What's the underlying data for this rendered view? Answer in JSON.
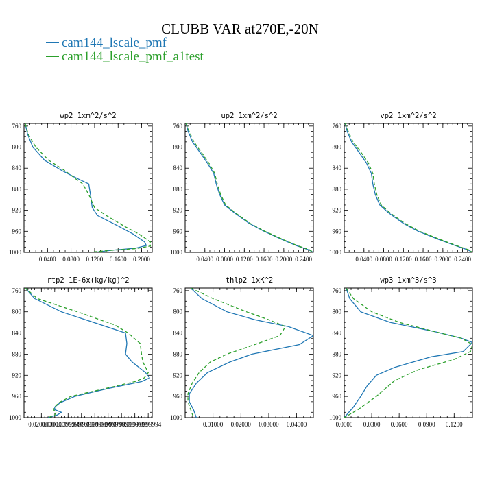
{
  "title": "CLUBB VAR at270E,-20N",
  "colors": {
    "series1": "#1f77b4",
    "series2": "#2ca02c"
  },
  "legend": [
    {
      "label": "cam144_lscale_pmf",
      "color": "#1f77b4",
      "style": "solid"
    },
    {
      "label": "cam144_lscale_pmf_a1test",
      "color": "#2ca02c",
      "style": "dashed"
    }
  ],
  "chart_data": [
    {
      "type": "line",
      "title": "wp2   1xm^2/s^2",
      "y_ticks": [
        "760",
        "800",
        "840",
        "880",
        "920",
        "960",
        "1000"
      ],
      "x_ticks": [
        {
          "value": 0.04,
          "label": "0.0400"
        },
        {
          "value": 0.08,
          "label": "0.0800"
        },
        {
          "value": 0.12,
          "label": "0.1200"
        },
        {
          "value": 0.16,
          "label": "0.1600"
        },
        {
          "value": 0.2,
          "label": "0.2000"
        }
      ],
      "xlim": [
        0.0,
        0.218
      ],
      "ylim": [
        755,
        1000
      ],
      "y_inverted": true,
      "series": [
        {
          "values": [
            [
              0.002,
              755
            ],
            [
              0.006,
              775
            ],
            [
              0.015,
              800
            ],
            [
              0.035,
              825
            ],
            [
              0.065,
              845
            ],
            [
              0.095,
              862
            ],
            [
              0.11,
              870
            ],
            [
              0.113,
              890
            ],
            [
              0.116,
              915
            ],
            [
              0.125,
              930
            ],
            [
              0.16,
              950
            ],
            [
              0.185,
              965
            ],
            [
              0.205,
              980
            ],
            [
              0.208,
              987
            ],
            [
              0.19,
              992
            ],
            [
              0.15,
              996
            ],
            [
              0.12,
              1000
            ]
          ]
        },
        {
          "values": [
            [
              0.002,
              755
            ],
            [
              0.007,
              775
            ],
            [
              0.02,
              800
            ],
            [
              0.042,
              825
            ],
            [
              0.07,
              845
            ],
            [
              0.09,
              862
            ],
            [
              0.1,
              870
            ],
            [
              0.11,
              890
            ],
            [
              0.12,
              915
            ],
            [
              0.14,
              930
            ],
            [
              0.17,
              950
            ],
            [
              0.195,
              965
            ],
            [
              0.215,
              980
            ],
            [
              0.215,
              988
            ],
            [
              0.19,
              993
            ],
            [
              0.15,
              996
            ],
            [
              0.11,
              1000
            ]
          ]
        }
      ]
    },
    {
      "type": "line",
      "title": "up2   1xm^2/s^2",
      "y_ticks": [
        "760",
        "800",
        "840",
        "880",
        "920",
        "960",
        "1000"
      ],
      "x_ticks": [
        {
          "value": 0.04,
          "label": "0.0400"
        },
        {
          "value": 0.08,
          "label": "0.0800"
        },
        {
          "value": 0.12,
          "label": "0.1200"
        },
        {
          "value": 0.16,
          "label": "0.1600"
        },
        {
          "value": 0.2,
          "label": "0.2000"
        },
        {
          "value": 0.24,
          "label": "0.2400"
        }
      ],
      "xlim": [
        0.0,
        0.26
      ],
      "ylim": [
        755,
        1000
      ],
      "y_inverted": true,
      "series": [
        {
          "values": [
            [
              0.002,
              755
            ],
            [
              0.006,
              770
            ],
            [
              0.015,
              790
            ],
            [
              0.03,
              810
            ],
            [
              0.045,
              830
            ],
            [
              0.058,
              850
            ],
            [
              0.063,
              870
            ],
            [
              0.07,
              890
            ],
            [
              0.08,
              910
            ],
            [
              0.1,
              925
            ],
            [
              0.13,
              945
            ],
            [
              0.16,
              960
            ],
            [
              0.195,
              975
            ],
            [
              0.225,
              987
            ],
            [
              0.25,
              995
            ],
            [
              0.26,
              1000
            ]
          ]
        },
        {
          "values": [
            [
              0.002,
              755
            ],
            [
              0.008,
              770
            ],
            [
              0.018,
              790
            ],
            [
              0.033,
              810
            ],
            [
              0.048,
              830
            ],
            [
              0.06,
              850
            ],
            [
              0.065,
              870
            ],
            [
              0.072,
              890
            ],
            [
              0.082,
              910
            ],
            [
              0.102,
              925
            ],
            [
              0.132,
              945
            ],
            [
              0.162,
              960
            ],
            [
              0.197,
              975
            ],
            [
              0.227,
              987
            ],
            [
              0.252,
              995
            ],
            [
              0.26,
              1000
            ]
          ]
        }
      ]
    },
    {
      "type": "line",
      "title": "vp2   1xm^2/s^2",
      "y_ticks": [
        "760",
        "800",
        "840",
        "880",
        "920",
        "960",
        "1000"
      ],
      "x_ticks": [
        {
          "value": 0.04,
          "label": "0.0400"
        },
        {
          "value": 0.08,
          "label": "0.0800"
        },
        {
          "value": 0.12,
          "label": "0.1200"
        },
        {
          "value": 0.16,
          "label": "0.1600"
        },
        {
          "value": 0.2,
          "label": "0.2000"
        },
        {
          "value": 0.24,
          "label": "0.2400"
        }
      ],
      "xlim": [
        0.0,
        0.26
      ],
      "ylim": [
        755,
        1000
      ],
      "y_inverted": true,
      "series": [
        {
          "values": [
            [
              0.002,
              755
            ],
            [
              0.006,
              770
            ],
            [
              0.015,
              790
            ],
            [
              0.03,
              810
            ],
            [
              0.045,
              830
            ],
            [
              0.055,
              850
            ],
            [
              0.058,
              870
            ],
            [
              0.063,
              890
            ],
            [
              0.072,
              910
            ],
            [
              0.09,
              925
            ],
            [
              0.12,
              945
            ],
            [
              0.15,
              960
            ],
            [
              0.19,
              975
            ],
            [
              0.225,
              987
            ],
            [
              0.25,
              995
            ],
            [
              0.26,
              1000
            ]
          ]
        },
        {
          "values": [
            [
              0.002,
              755
            ],
            [
              0.008,
              770
            ],
            [
              0.018,
              790
            ],
            [
              0.034,
              810
            ],
            [
              0.049,
              830
            ],
            [
              0.058,
              850
            ],
            [
              0.061,
              870
            ],
            [
              0.066,
              890
            ],
            [
              0.075,
              910
            ],
            [
              0.093,
              925
            ],
            [
              0.123,
              945
            ],
            [
              0.153,
              960
            ],
            [
              0.193,
              975
            ],
            [
              0.227,
              987
            ],
            [
              0.252,
              995
            ],
            [
              0.26,
              1000
            ]
          ]
        }
      ]
    },
    {
      "type": "line",
      "title": "rtp2   1E-6x(kg/kg)^2",
      "y_ticks": [
        "760",
        "800",
        "840",
        "880",
        "920",
        "960",
        "1000"
      ],
      "x_ticks": [
        {
          "value": 0.02,
          "label": "0.0200000"
        },
        {
          "value": 0.03,
          "label": "0.0300000"
        },
        {
          "value": 0.04,
          "label": "0.0399999"
        },
        {
          "value": 0.05,
          "label": "0.0499999"
        },
        {
          "value": 0.06,
          "label": "0.0599999"
        },
        {
          "value": 0.07,
          "label": "0.0699999"
        },
        {
          "value": 0.08,
          "label": "0.0799999"
        },
        {
          "value": 0.09,
          "label": "0.0899999"
        },
        {
          "value": 0.1,
          "label": "0.0999994"
        }
      ],
      "xlim": [
        0.007,
        0.103
      ],
      "ylim": [
        755,
        1000
      ],
      "y_inverted": true,
      "series": [
        {
          "values": [
            [
              0.008,
              755
            ],
            [
              0.015,
              775
            ],
            [
              0.035,
              800
            ],
            [
              0.065,
              825
            ],
            [
              0.083,
              840
            ],
            [
              0.084,
              860
            ],
            [
              0.083,
              880
            ],
            [
              0.088,
              895
            ],
            [
              0.098,
              915
            ],
            [
              0.101,
              925
            ],
            [
              0.095,
              932
            ],
            [
              0.07,
              945
            ],
            [
              0.045,
              960
            ],
            [
              0.034,
              972
            ],
            [
              0.03,
              980
            ],
            [
              0.03,
              985
            ],
            [
              0.035,
              990
            ],
            [
              0.032,
              995
            ],
            [
              0.025,
              1000
            ]
          ]
        },
        {
          "values": [
            [
              0.008,
              755
            ],
            [
              0.017,
              775
            ],
            [
              0.047,
              800
            ],
            [
              0.075,
              825
            ],
            [
              0.085,
              840
            ],
            [
              0.094,
              860
            ],
            [
              0.095,
              880
            ],
            [
              0.096,
              895
            ],
            [
              0.1,
              915
            ],
            [
              0.097,
              925
            ],
            [
              0.09,
              932
            ],
            [
              0.068,
              945
            ],
            [
              0.042,
              960
            ],
            [
              0.033,
              972
            ],
            [
              0.03,
              980
            ],
            [
              0.029,
              985
            ],
            [
              0.031,
              990
            ],
            [
              0.03,
              995
            ],
            [
              0.025,
              1000
            ]
          ]
        }
      ]
    },
    {
      "type": "line",
      "title": "thlp2   1xK^2",
      "y_ticks": [
        "760",
        "800",
        "840",
        "880",
        "920",
        "960",
        "1000"
      ],
      "x_ticks": [
        {
          "value": 0.01,
          "label": "0.01000"
        },
        {
          "value": 0.02,
          "label": "0.02000"
        },
        {
          "value": 0.03,
          "label": "0.03000"
        },
        {
          "value": 0.04,
          "label": "0.04000"
        }
      ],
      "xlim": [
        0.0,
        0.046
      ],
      "ylim": [
        755,
        1000
      ],
      "y_inverted": true,
      "series": [
        {
          "values": [
            [
              0.002,
              755
            ],
            [
              0.006,
              775
            ],
            [
              0.015,
              800
            ],
            [
              0.025,
              815
            ],
            [
              0.037,
              828
            ],
            [
              0.046,
              845
            ],
            [
              0.041,
              862
            ],
            [
              0.024,
              880
            ],
            [
              0.016,
              895
            ],
            [
              0.008,
              915
            ],
            [
              0.004,
              935
            ],
            [
              0.0015,
              955
            ],
            [
              0.0015,
              970
            ],
            [
              0.003,
              985
            ],
            [
              0.004,
              1000
            ]
          ]
        },
        {
          "values": [
            [
              0.002,
              755
            ],
            [
              0.01,
              775
            ],
            [
              0.022,
              800
            ],
            [
              0.03,
              815
            ],
            [
              0.036,
              828
            ],
            [
              0.034,
              845
            ],
            [
              0.025,
              862
            ],
            [
              0.015,
              880
            ],
            [
              0.009,
              895
            ],
            [
              0.005,
              915
            ],
            [
              0.0025,
              935
            ],
            [
              0.001,
              955
            ],
            [
              0.001,
              970
            ],
            [
              0.002,
              985
            ],
            [
              0.003,
              1000
            ]
          ]
        }
      ]
    },
    {
      "type": "line",
      "title": "wp3   1xm^3/s^3",
      "y_ticks": [
        "760",
        "800",
        "840",
        "880",
        "920",
        "960",
        "1000"
      ],
      "x_ticks": [
        {
          "value": 0.0,
          "label": "0.0000"
        },
        {
          "value": 0.03,
          "label": "0.0300"
        },
        {
          "value": 0.06,
          "label": "0.0600"
        },
        {
          "value": 0.09,
          "label": "0.0900"
        },
        {
          "value": 0.12,
          "label": "0.1200"
        }
      ],
      "xlim": [
        0.0,
        0.14
      ],
      "ylim": [
        755,
        1000
      ],
      "y_inverted": true,
      "series": [
        {
          "values": [
            [
              0.002,
              755
            ],
            [
              0.006,
              775
            ],
            [
              0.018,
              800
            ],
            [
              0.05,
              820
            ],
            [
              0.1,
              838
            ],
            [
              0.128,
              850
            ],
            [
              0.14,
              858
            ],
            [
              0.13,
              875
            ],
            [
              0.095,
              885
            ],
            [
              0.055,
              905
            ],
            [
              0.035,
              920
            ],
            [
              0.025,
              940
            ],
            [
              0.018,
              960
            ],
            [
              0.01,
              980
            ],
            [
              0.0,
              1000
            ]
          ]
        },
        {
          "values": [
            [
              0.002,
              755
            ],
            [
              0.01,
              775
            ],
            [
              0.03,
              800
            ],
            [
              0.06,
              820
            ],
            [
              0.1,
              838
            ],
            [
              0.128,
              850
            ],
            [
              0.14,
              862
            ],
            [
              0.138,
              875
            ],
            [
              0.12,
              890
            ],
            [
              0.08,
              910
            ],
            [
              0.055,
              930
            ],
            [
              0.035,
              960
            ],
            [
              0.015,
              985
            ],
            [
              0.0,
              1000
            ]
          ]
        }
      ]
    }
  ]
}
